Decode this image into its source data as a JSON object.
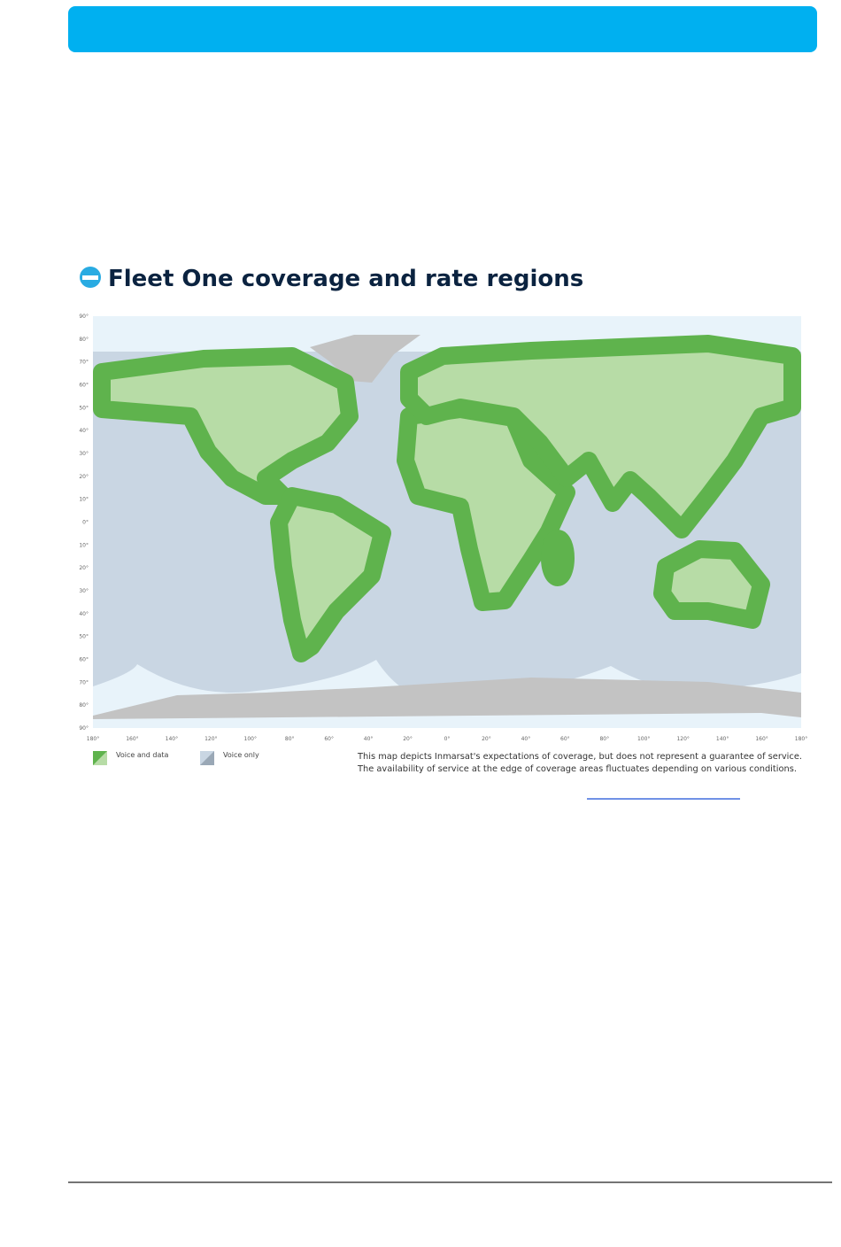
{
  "map": {
    "title": "Fleet One coverage and rate regions",
    "latitude_labels": [
      "90°",
      "80°",
      "70°",
      "60°",
      "50°",
      "40°",
      "30°",
      "20°",
      "10°",
      "0°",
      "10°",
      "20°",
      "30°",
      "40°",
      "50°",
      "60°",
      "70°",
      "80°",
      "90°"
    ],
    "longitude_labels": [
      "180°",
      "160°",
      "140°",
      "120°",
      "100°",
      "80°",
      "60°",
      "40°",
      "20°",
      "0°",
      "20°",
      "40°",
      "60°",
      "80°",
      "100°",
      "120°",
      "140°",
      "160°",
      "180°"
    ],
    "legend": [
      "Voice and data",
      "Voice only"
    ],
    "disclaimer": [
      "This map depicts Inmarsat's expectations of coverage, but does not represent a guarantee of service.",
      "The availability of service at the edge of coverage areas fluctuates depending on various conditions."
    ]
  }
}
